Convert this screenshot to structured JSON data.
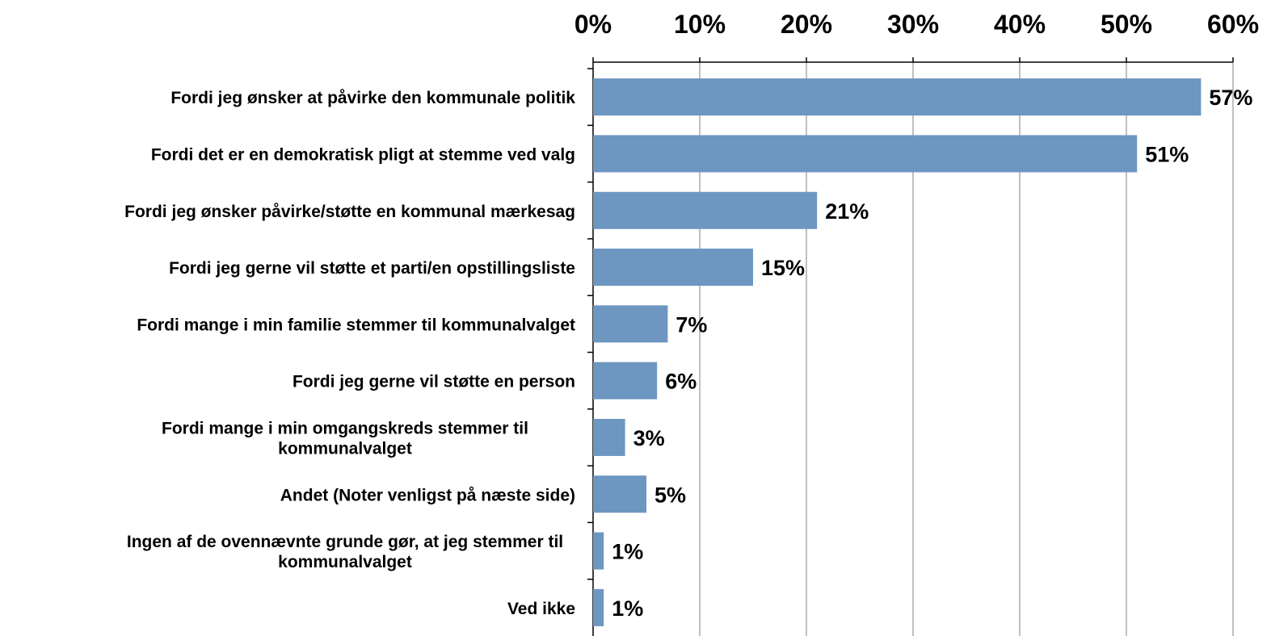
{
  "chart_data": {
    "type": "bar",
    "orientation": "horizontal",
    "categories": [
      "Fordi jeg ønsker at påvirke den kommunale politik",
      "Fordi det er en demokratisk pligt at stemme ved valg",
      "Fordi jeg ønsker påvirke/støtte en kommunal mærkesag",
      "Fordi jeg gerne vil støtte et parti/en opstillingsliste",
      "Fordi mange i min familie stemmer til kommunalvalget",
      "Fordi jeg gerne vil støtte en person",
      "Fordi mange i min omgangskreds stemmer til\nkommunalvalget",
      "Andet (Noter venligst på næste side)",
      "Ingen af de ovennævnte grunde gør, at jeg stemmer til\nkommunalvalget",
      "Ved ikke"
    ],
    "values": [
      57,
      51,
      21,
      15,
      7,
      6,
      3,
      5,
      1,
      1
    ],
    "value_labels": [
      "57%",
      "51%",
      "21%",
      "15%",
      "7%",
      "6%",
      "3%",
      "5%",
      "1%",
      "1%"
    ],
    "color": "#6d96c1",
    "xlim": [
      0,
      60
    ],
    "xticks": [
      {
        "value": 0,
        "label": "0%"
      },
      {
        "value": 10,
        "label": "10%"
      },
      {
        "value": 20,
        "label": "20%"
      },
      {
        "value": 30,
        "label": "30%"
      },
      {
        "value": 40,
        "label": "40%"
      },
      {
        "value": 50,
        "label": "50%"
      },
      {
        "value": 60,
        "label": "60%"
      }
    ],
    "grid": true
  }
}
